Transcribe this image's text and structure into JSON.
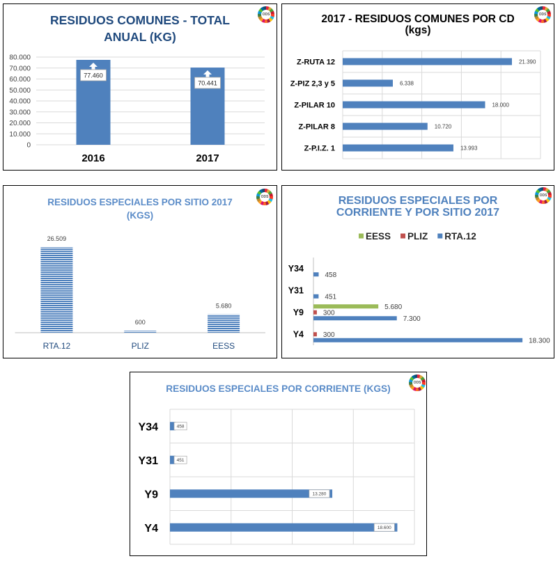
{
  "logo": {
    "text": "ODS",
    "colors": [
      "#E5243B",
      "#DDA63A",
      "#4C9F38",
      "#C5192D",
      "#FF3A21",
      "#26BDE2",
      "#FCC30B",
      "#A21942",
      "#FD6925",
      "#DD1367",
      "#FD9D24",
      "#BF8B2E",
      "#3F7E44",
      "#0A97D9",
      "#56C02B",
      "#00689D",
      "#19486A"
    ]
  },
  "chart_data": [
    {
      "type": "bar",
      "orientation": "vertical",
      "title": "RESIDUOS COMUNES - TOTAL\nANUAL (KG)",
      "title_color": "#1F497D",
      "categories": [
        "2016",
        "2017"
      ],
      "values": [
        77460,
        70441
      ],
      "data_labels": [
        "77.460",
        "70.441"
      ],
      "ylim": [
        0,
        80000
      ],
      "y_ticks": [
        80000,
        70000,
        60000,
        50000,
        40000,
        30000,
        20000,
        10000,
        0
      ],
      "y_tick_labels": [
        "80.000",
        "70.000",
        "60.000",
        "50.000",
        "40.000",
        "30.000",
        "20.000",
        "10.000",
        "0"
      ],
      "grid": true,
      "legend": "none",
      "color": "#4F81BD"
    },
    {
      "type": "bar",
      "orientation": "horizontal",
      "title": "2017 - RESIDUOS COMUNES POR CD\n(kgs)",
      "title_color": "#000000",
      "categories": [
        "Z-RUTA 12",
        "Z-PIZ 2,3 y 5",
        "Z-PILAR 10",
        "Z-PILAR 8",
        "Z-P.I.Z. 1"
      ],
      "values": [
        21390,
        6338,
        18000,
        10720,
        13993
      ],
      "data_labels": [
        "21.390",
        "6.338",
        "18.000",
        "10.720",
        "13.993"
      ],
      "xlim": [
        0,
        25000
      ],
      "x_grid_step": 5000,
      "grid": true,
      "legend": "none",
      "color": "#4F81BD"
    },
    {
      "type": "bar",
      "orientation": "vertical",
      "title": "RESIDUOS ESPECIALES POR SITIO 2017\n(KGS)",
      "title_color": "#5B8CC8",
      "categories": [
        "RTA.12",
        "PLIZ",
        "EESS"
      ],
      "values": [
        26509,
        600,
        5680
      ],
      "data_labels": [
        "26.509",
        "600",
        "5.680"
      ],
      "ylim": [
        0,
        30000
      ],
      "grid": false,
      "legend": "none",
      "color": "#4F81BD",
      "category_label_color": "#1F497D"
    },
    {
      "type": "bar",
      "orientation": "horizontal",
      "title": "RESIDUOS ESPECIALES POR\nCORRIENTE Y POR SITIO 2017",
      "title_color": "#4F81BD",
      "categories": [
        "Y34",
        "Y31",
        "Y9",
        "Y4"
      ],
      "series": [
        {
          "name": "EESS",
          "color": "#9BBB59",
          "values": [
            null,
            null,
            5680,
            null
          ],
          "data_labels": [
            null,
            null,
            "5.680",
            null
          ]
        },
        {
          "name": "PLIZ",
          "color": "#C0504D",
          "values": [
            null,
            null,
            300,
            300
          ],
          "data_labels": [
            null,
            null,
            "300",
            "300"
          ]
        },
        {
          "name": "RTA.12",
          "color": "#4F81BD",
          "values": [
            458,
            451,
            7300,
            18300
          ],
          "data_labels": [
            "458",
            "451",
            "7.300",
            "18.300"
          ]
        }
      ],
      "xlim": [
        0,
        20000
      ],
      "grid": false,
      "legend": "top"
    },
    {
      "type": "bar",
      "orientation": "horizontal",
      "title": "RESIDUOS ESPECIALES POR CORRIENTE (KGS)",
      "title_color": "#5B8CC8",
      "categories": [
        "Y34",
        "Y31",
        "Y9",
        "Y4"
      ],
      "values": [
        458,
        451,
        13280,
        18600
      ],
      "data_labels": [
        "458",
        "451",
        "13.280",
        "18.600"
      ],
      "xlim": [
        0,
        20000
      ],
      "x_grid_step": 5000,
      "grid": true,
      "legend": "none",
      "color": "#4F81BD"
    }
  ]
}
